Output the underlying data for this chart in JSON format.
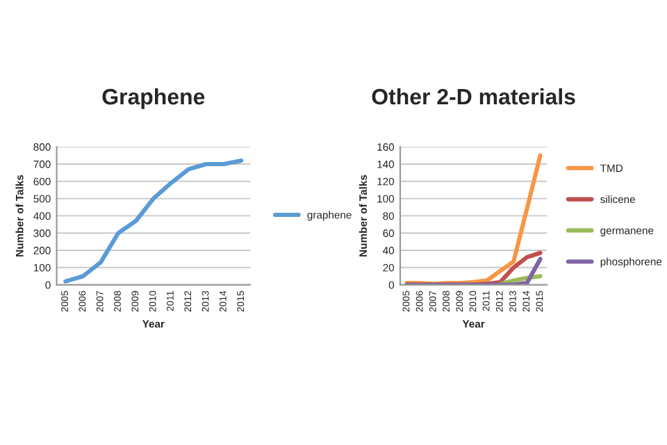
{
  "chart_data": [
    {
      "type": "line",
      "title": "Graphene",
      "xlabel": "Year",
      "ylabel": "Number of Talks",
      "categories": [
        "2005",
        "2006",
        "2007",
        "2008",
        "2009",
        "2010",
        "2011",
        "2012",
        "2013",
        "2014",
        "2015"
      ],
      "series": [
        {
          "name": "graphene",
          "color": "#5b9bd5",
          "values": [
            20,
            50,
            130,
            300,
            370,
            500,
            590,
            670,
            700,
            700,
            720
          ]
        }
      ],
      "ylim": [
        0,
        800
      ],
      "yticks": [
        0,
        100,
        200,
        300,
        400,
        500,
        600,
        700,
        800
      ],
      "grid": "y",
      "legend": "right"
    },
    {
      "type": "line",
      "title": "Other 2-D materials",
      "xlabel": "Year",
      "ylabel": "Number of Talks",
      "categories": [
        "2005",
        "2006",
        "2007",
        "2008",
        "2009",
        "2010",
        "2011",
        "2012",
        "2013",
        "2014",
        "2015"
      ],
      "series": [
        {
          "name": "TMD",
          "color": "#f79646",
          "values": [
            2,
            2,
            1,
            2,
            2,
            3,
            5,
            16,
            27,
            88,
            150
          ]
        },
        {
          "name": "silicene",
          "color": "#c0504d",
          "values": [
            0,
            0,
            0,
            0,
            0,
            0,
            1,
            3,
            20,
            32,
            37
          ]
        },
        {
          "name": "germanene",
          "color": "#9bbb59",
          "values": [
            null,
            null,
            null,
            null,
            null,
            null,
            null,
            1,
            5,
            8,
            10
          ]
        },
        {
          "name": "phosphorene",
          "color": "#8064a2",
          "values": [
            0,
            0,
            0,
            0,
            0,
            0,
            0,
            0,
            0,
            2,
            30
          ]
        }
      ],
      "ylim": [
        0,
        160
      ],
      "yticks": [
        0,
        20,
        40,
        60,
        80,
        100,
        120,
        140,
        160
      ],
      "grid": "y",
      "legend": "right"
    }
  ]
}
